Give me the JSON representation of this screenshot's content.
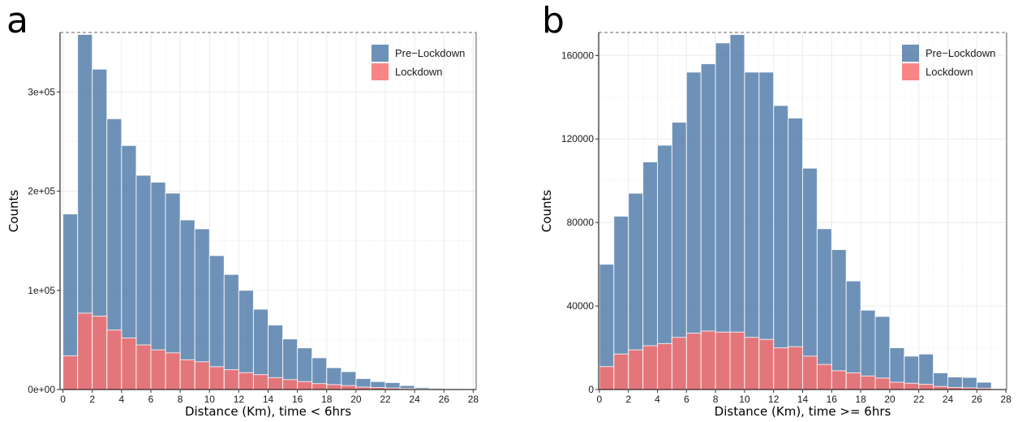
{
  "chart_data": [
    {
      "type": "bar",
      "panel_label": "a",
      "xlabel": "Distance (Km), time < 6hrs",
      "ylabel": "Counts",
      "xlim": [
        -0.2,
        28.2
      ],
      "ylim": [
        0,
        360000
      ],
      "xticks": [
        0,
        2,
        4,
        6,
        8,
        10,
        12,
        14,
        16,
        18,
        20,
        22,
        24,
        26,
        28
      ],
      "yticks": [
        0,
        100000,
        200000,
        300000
      ],
      "ytick_labels": [
        "0e+00",
        "1e+05",
        "2e+05",
        "3e+05"
      ],
      "bin_width": 1,
      "bin_starts": [
        0,
        1,
        2,
        3,
        4,
        5,
        6,
        7,
        8,
        9,
        10,
        11,
        12,
        13,
        14,
        15,
        16,
        17,
        18,
        19,
        20,
        21,
        22,
        23,
        24,
        25,
        26,
        27
      ],
      "legend_position": "top-right",
      "grid": true,
      "series": [
        {
          "name": "Pre−Lockdown",
          "color": "#4e79a7",
          "values": [
            177000,
            358000,
            323000,
            273000,
            246000,
            216000,
            209000,
            198000,
            171000,
            162000,
            135000,
            116000,
            100000,
            81000,
            65000,
            51000,
            42000,
            32000,
            22000,
            18000,
            11000,
            8000,
            7000,
            4000,
            2000,
            1200,
            500,
            200
          ]
        },
        {
          "name": "Lockdown",
          "color": "#f87171",
          "values": [
            34000,
            77000,
            74000,
            60000,
            52000,
            45000,
            40000,
            37000,
            30000,
            28000,
            23000,
            20000,
            17000,
            15000,
            12000,
            10000,
            8000,
            6000,
            5000,
            4000,
            2500,
            2000,
            1500,
            1000,
            600,
            300,
            100,
            50
          ]
        }
      ]
    },
    {
      "type": "bar",
      "panel_label": "b",
      "xlabel": "Distance (Km), time >= 6hrs",
      "ylabel": "Counts",
      "xlim": [
        -0.05,
        28.05
      ],
      "ylim": [
        0,
        171000
      ],
      "xticks": [
        0,
        2,
        4,
        6,
        8,
        10,
        12,
        14,
        16,
        18,
        20,
        22,
        24,
        26,
        28
      ],
      "yticks": [
        0,
        40000,
        80000,
        120000,
        160000
      ],
      "ytick_labels": [
        "0",
        "40000",
        "80000",
        "120000",
        "160000"
      ],
      "bin_width": 1,
      "bin_starts": [
        0,
        1,
        2,
        3,
        4,
        5,
        6,
        7,
        8,
        9,
        10,
        11,
        12,
        13,
        14,
        15,
        16,
        17,
        18,
        19,
        20,
        21,
        22,
        23,
        24,
        25,
        26,
        27
      ],
      "legend_position": "top-right",
      "grid": true,
      "series": [
        {
          "name": "Pre−Lockdown",
          "color": "#4e79a7",
          "values": [
            60000,
            83000,
            94000,
            109000,
            117000,
            128000,
            152000,
            156000,
            166000,
            170000,
            152000,
            152000,
            136000,
            130000,
            106000,
            77000,
            67000,
            52000,
            38000,
            35000,
            20000,
            16000,
            17000,
            8000,
            6000,
            5800,
            3500,
            300
          ]
        },
        {
          "name": "Lockdown",
          "color": "#f87171",
          "values": [
            11000,
            17000,
            19000,
            21000,
            22000,
            25000,
            27000,
            28000,
            27500,
            27500,
            25000,
            24000,
            20000,
            20500,
            16000,
            12000,
            9000,
            8000,
            6500,
            5500,
            3500,
            3000,
            2500,
            1500,
            1000,
            800,
            600,
            100
          ]
        }
      ]
    }
  ]
}
